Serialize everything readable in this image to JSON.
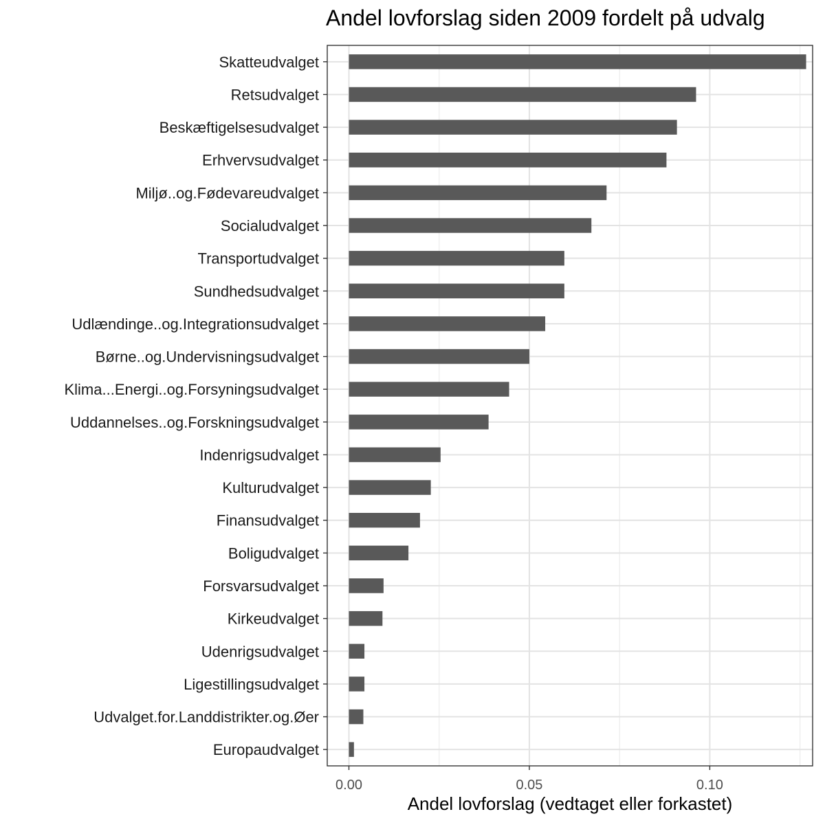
{
  "chart_data": {
    "type": "bar",
    "orientation": "horizontal",
    "title": "Andel lovforslag siden 2009 fordelt på udvalg",
    "xlabel": "Andel lovforslag (vedtaget eller forkastet)",
    "ylabel": "",
    "xlim": [
      -0.006,
      0.1285
    ],
    "x_ticks": [
      0.0,
      0.05,
      0.1
    ],
    "x_tick_labels": [
      "0.00",
      "0.05",
      "0.10"
    ],
    "grid": true,
    "bar_color": "#595959",
    "categories": [
      "Skatteudvalget",
      "Retsudvalget",
      "Beskæftigelsesudvalget",
      "Erhvervsudvalget",
      "Miljø..og.Fødevareudvalget",
      "Socialudvalget",
      "Transportudvalget",
      "Sundhedsudvalget",
      "Udlændinge..og.Integrationsudvalget",
      "Børne..og.Undervisningsudvalget",
      "Klima...Energi..og.Forsyningsudvalget",
      "Uddannelses..og.Forskningsudvalget",
      "Indenrigsudvalget",
      "Kulturudvalget",
      "Finansudvalget",
      "Boligudvalget",
      "Forsvarsudvalget",
      "Kirkeudvalget",
      "Udenrigsudvalget",
      "Ligestillingsudvalget",
      "Udvalget.for.Landdistrikter.og.Øer",
      "Europaudvalget"
    ],
    "values": [
      0.1267,
      0.0962,
      0.0909,
      0.088,
      0.0714,
      0.0672,
      0.0597,
      0.0597,
      0.0544,
      0.05,
      0.0444,
      0.0387,
      0.0254,
      0.0227,
      0.0197,
      0.0165,
      0.0096,
      0.0093,
      0.0043,
      0.0043,
      0.004,
      0.0014
    ]
  }
}
